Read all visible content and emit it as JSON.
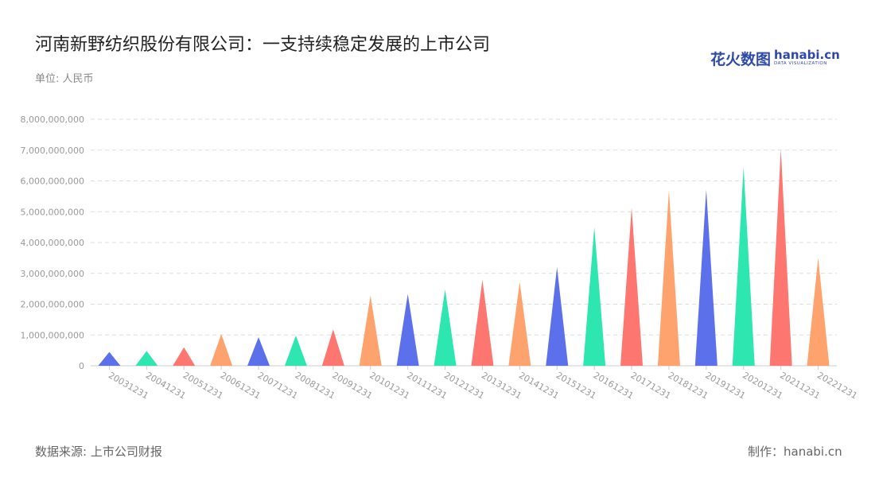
{
  "header": {
    "title": "河南新野纺织股份有限公司：一支持续稳定发展的上市公司",
    "unit": "单位: 人民币"
  },
  "logo": {
    "cn": "花火数图",
    "en": "hanabi.cn",
    "sub": "DATA VISUALIZATION"
  },
  "footer": {
    "source": "数据来源: 上市公司财报",
    "maker": "制作：hanabi.cn"
  },
  "colors": {
    "blue": "#5b70ea",
    "green": "#2ee6b0",
    "red": "#fe7670",
    "orange": "#fea26e"
  },
  "chart_data": {
    "type": "bar",
    "mark_shape": "triangle",
    "title": "河南新野纺织股份有限公司：一支持续稳定发展的上市公司",
    "ylabel": "",
    "xlabel": "",
    "ylim": [
      0,
      8000000000
    ],
    "yticks": [
      0,
      1000000000,
      2000000000,
      3000000000,
      4000000000,
      5000000000,
      6000000000,
      7000000000,
      8000000000
    ],
    "ytick_labels": [
      "0",
      "1,000,000,000",
      "2,000,000,000",
      "3,000,000,000",
      "4,000,000,000",
      "5,000,000,000",
      "6,000,000,000",
      "7,000,000,000",
      "8,000,000,000"
    ],
    "grid": true,
    "legend": "none",
    "categories": [
      "20031231",
      "20041231",
      "20051231",
      "20061231",
      "20071231",
      "20081231",
      "20091231",
      "20101231",
      "20111231",
      "20121231",
      "20131231",
      "20141231",
      "20151231",
      "20161231",
      "20171231",
      "20181231",
      "20191231",
      "20201231",
      "20211231",
      "20221231"
    ],
    "values": [
      450000000,
      480000000,
      600000000,
      1030000000,
      930000000,
      980000000,
      1180000000,
      2280000000,
      2330000000,
      2480000000,
      2790000000,
      2720000000,
      3200000000,
      4500000000,
      5130000000,
      5700000000,
      5720000000,
      6450000000,
      7030000000,
      3500000000
    ],
    "bar_colors": [
      "#5b70ea",
      "#2ee6b0",
      "#fe7670",
      "#fea26e",
      "#5b70ea",
      "#2ee6b0",
      "#fe7670",
      "#fea26e",
      "#5b70ea",
      "#2ee6b0",
      "#fe7670",
      "#fea26e",
      "#5b70ea",
      "#2ee6b0",
      "#fe7670",
      "#fea26e",
      "#5b70ea",
      "#2ee6b0",
      "#fe7670",
      "#fea26e"
    ]
  }
}
